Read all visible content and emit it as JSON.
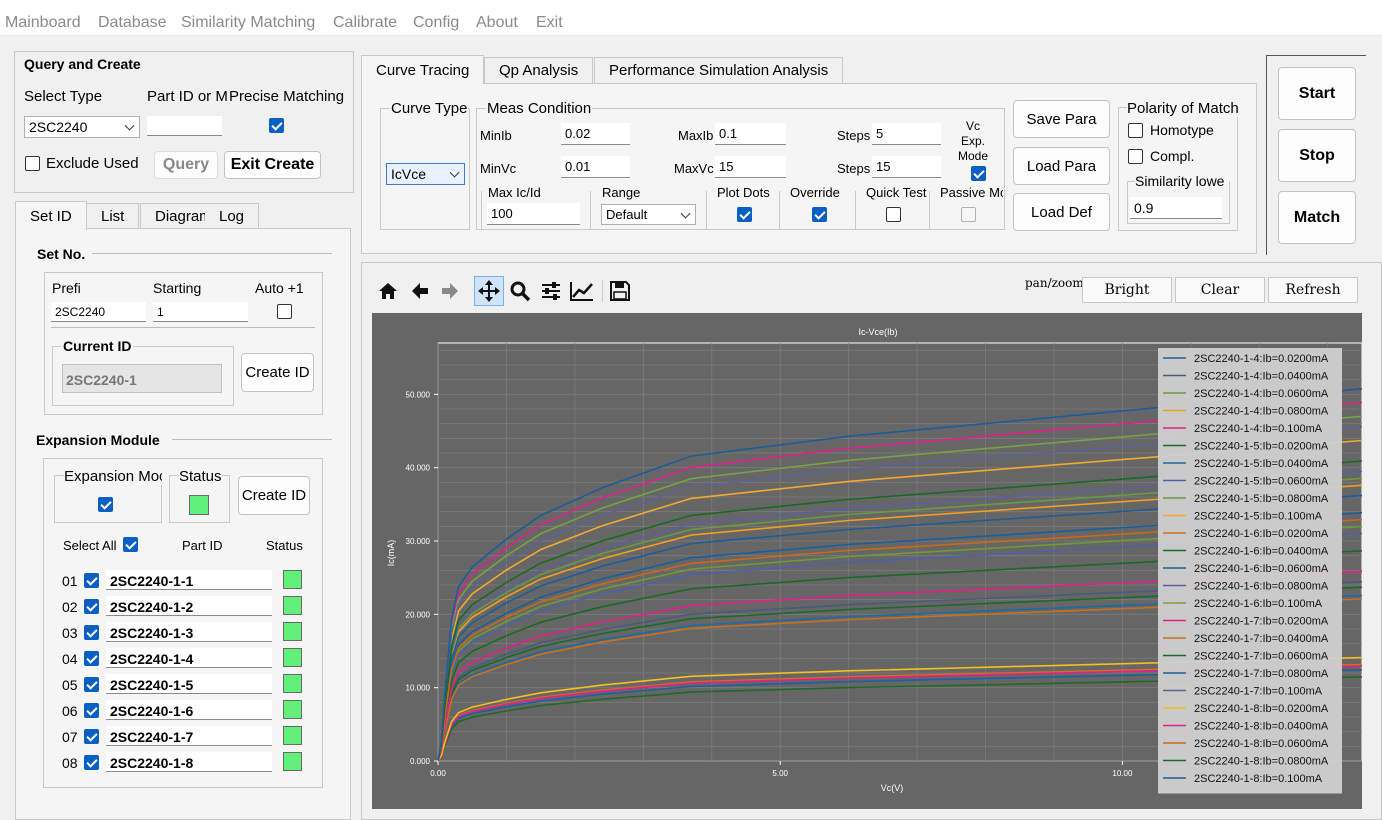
{
  "menu": [
    "Mainboard",
    "Database",
    "Similarity Matching",
    "Calibrate",
    "Config",
    "About",
    "Exit"
  ],
  "query": {
    "title": "Query and Create",
    "select_type_label": "Select Type",
    "part_id_label": "Part ID or M",
    "precise_label": "Precise Matching",
    "select_type_value": "2SC2240",
    "part_id_value": "",
    "precise_checked": true,
    "exclude_used_label": "Exclude Used",
    "query_button": "Query",
    "exit_create_button": "Exit Create"
  },
  "left_tabs": [
    "Set ID",
    "List",
    "Diagram",
    "Log"
  ],
  "set_no": {
    "title": "Set No.",
    "prefix_label": "Prefi",
    "starting_label": "Starting",
    "auto_label": "Auto +1",
    "prefix_value": "2SC2240",
    "starting_value": "1",
    "current_id_label": "Current ID",
    "current_id_value": "2SC2240-1",
    "create_id_button": "Create ID"
  },
  "expansion": {
    "title": "Expansion Module",
    "module_label": "Expansion Moc",
    "status_label": "Status",
    "create_id_button": "Create ID",
    "select_all_label": "Select All",
    "part_id_header": "Part ID",
    "status_header": "Status",
    "rows": [
      {
        "num": "01",
        "part": "2SC2240-1-1"
      },
      {
        "num": "02",
        "part": "2SC2240-1-2"
      },
      {
        "num": "03",
        "part": "2SC2240-1-3"
      },
      {
        "num": "04",
        "part": "2SC2240-1-4"
      },
      {
        "num": "05",
        "part": "2SC2240-1-5"
      },
      {
        "num": "06",
        "part": "2SC2240-1-6"
      },
      {
        "num": "07",
        "part": "2SC2240-1-7"
      },
      {
        "num": "08",
        "part": "2SC2240-1-8"
      }
    ]
  },
  "main_tabs": [
    "Curve Tracing",
    "Qp Analysis",
    "Performance Simulation Analysis"
  ],
  "curve": {
    "curve_type_label": "Curve Type",
    "curve_type_value": "IcVce",
    "meas_label": "Meas Condition",
    "minib_label": "MinIb",
    "minib_value": "0.02",
    "maxib_label": "MaxIb",
    "maxib_value": "0.1",
    "steps1_label": "Steps",
    "steps1_value": "5",
    "minvc_label": "MinVc",
    "minvc_value": "0.01",
    "maxvc_label": "MaxVc",
    "maxvc_value": "15",
    "steps2_label": "Steps",
    "steps2_value": "15",
    "vc_exp_label1": "Vc",
    "vc_exp_label2": "Exp.",
    "vc_exp_label3": "Mode",
    "maxicid_label": "Max Ic/Id",
    "maxicid_value": "100",
    "range_label": "Range",
    "range_value": "Default",
    "plot_dots_label": "Plot Dots",
    "override_label": "Override",
    "quick_test_label": "Quick Test",
    "passive_label": "Passive Mc",
    "save_para": "Save Para",
    "load_para": "Load Para",
    "load_def": "Load Def",
    "polarity_label": "Polarity of Match",
    "homotype_label": "Homotype",
    "compl_label": "Compl.",
    "similarity_label": "Similarity lowe",
    "similarity_value": "0.9"
  },
  "actions": {
    "start": "Start",
    "stop": "Stop",
    "match": "Match"
  },
  "plot_toolbar": {
    "mode_text": "pan/zoom",
    "bright": "Bright",
    "clear": "Clear",
    "refresh": "Refresh"
  },
  "chart_data": {
    "type": "line",
    "title": "Ic-Vce(Ib)",
    "xlabel": "Vc(V)",
    "ylabel": "Ic(mA)",
    "xlim": [
      0,
      13.5
    ],
    "ylim": [
      0,
      57
    ],
    "x_ticks": [
      "0.00",
      "5.00",
      "10.00"
    ],
    "y_ticks": [
      "0.000",
      "10.000",
      "20.000",
      "30.000",
      "40.000",
      "50.000"
    ],
    "grid": true,
    "legend_position": "top-right",
    "x": [
      0,
      0.05,
      0.1,
      0.2,
      0.3,
      0.5,
      1.0,
      1.5,
      2.4,
      3.7,
      6.0,
      8.5,
      11.0,
      13.5
    ],
    "shape": [
      0,
      0.05,
      0.17,
      0.36,
      0.44,
      0.49,
      0.56,
      0.62,
      0.69,
      0.77,
      0.82,
      0.86,
      0.9,
      0.94
    ],
    "series": [
      {
        "name": "2SC2240-1-4:Ib=0.0200mA",
        "color": "#1f5fa0",
        "scale": 13.2
      },
      {
        "name": "2SC2240-1-4:Ib=0.0400mA",
        "color": "#4a5a80",
        "scale": 26.0
      },
      {
        "name": "2SC2240-1-4:Ib=0.0600mA",
        "color": "#6f9a3a",
        "scale": 34.0
      },
      {
        "name": "2SC2240-1-4:Ib=0.0800mA",
        "color": "#f0a020",
        "scale": 40.0
      },
      {
        "name": "2SC2240-1-4:Ib=0.100mA",
        "color": "#e0208a",
        "scale": 52.0
      },
      {
        "name": "2SC2240-1-5:Ib=0.0200mA",
        "color": "#1e6a28",
        "scale": 12.2
      },
      {
        "name": "2SC2240-1-5:Ib=0.0400mA",
        "color": "#1d6aa0",
        "scale": 24.0
      },
      {
        "name": "2SC2240-1-5:Ib=0.0600mA",
        "color": "#5060a8",
        "scale": 33.0
      },
      {
        "name": "2SC2240-1-5:Ib=0.0800mA",
        "color": "#6a9a44",
        "scale": 41.0
      },
      {
        "name": "2SC2240-1-5:Ib=0.100mA",
        "color": "#f5a830",
        "scale": 46.5
      },
      {
        "name": "2SC2240-1-6:Ib=0.0200mA",
        "color": "#d07020",
        "scale": 14.0
      },
      {
        "name": "2SC2240-1-6:Ib=0.0400mA",
        "color": "#1a6a2a",
        "scale": 25.2
      },
      {
        "name": "2SC2240-1-6:Ib=0.0600mA",
        "color": "#1a5f9a",
        "scale": 36.0
      },
      {
        "name": "2SC2240-1-6:Ib=0.0800mA",
        "color": "#5a60a0",
        "scale": 42.0
      },
      {
        "name": "2SC2240-1-6:Ib=0.100mA",
        "color": "#7aa046",
        "scale": 50.0
      },
      {
        "name": "2SC2240-1-7:Ib=0.0200mA",
        "color": "#e0208a",
        "scale": 13.8
      },
      {
        "name": "2SC2240-1-7:Ib=0.0400mA",
        "color": "#c87020",
        "scale": 23.5
      },
      {
        "name": "2SC2240-1-7:Ib=0.0600mA",
        "color": "#1a6a22",
        "scale": 30.5
      },
      {
        "name": "2SC2240-1-7:Ib=0.0800mA",
        "color": "#1f5c9a",
        "scale": 38.5
      },
      {
        "name": "2SC2240-1-7:Ib=0.100mA",
        "color": "#5a6494",
        "scale": 48.5
      },
      {
        "name": "2SC2240-1-8:Ib=0.0200mA",
        "color": "#f2c020",
        "scale": 15.0
      },
      {
        "name": "2SC2240-1-8:Ib=0.0400mA",
        "color": "#e0208a",
        "scale": 27.5
      },
      {
        "name": "2SC2240-1-8:Ib=0.0600mA",
        "color": "#c86a18",
        "scale": 35.0
      },
      {
        "name": "2SC2240-1-8:Ib=0.0800mA",
        "color": "#1a6a26",
        "scale": 43.5
      },
      {
        "name": "2SC2240-1-8:Ib=0.100mA",
        "color": "#1e5c9a",
        "scale": 54.0
      }
    ]
  }
}
